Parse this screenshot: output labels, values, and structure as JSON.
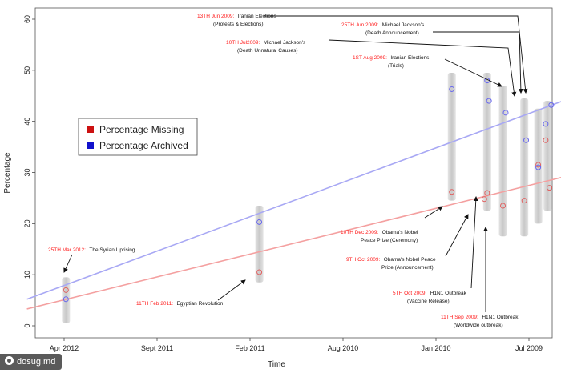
{
  "chart_data": {
    "type": "scatter",
    "xlabel": "Time",
    "ylabel": "Percentage",
    "ylim": [
      0,
      60
    ],
    "yticks": [
      0,
      10,
      20,
      30,
      40,
      50,
      60
    ],
    "x_tick_labels": [
      "Apr 2012",
      "Sept 2011",
      "Feb 2011",
      "Aug 2010",
      "Jan 2010",
      "Jul 2009"
    ],
    "x_tick_pos": [
      0,
      1,
      2,
      3,
      4,
      5
    ],
    "xlim": [
      -0.4,
      5.5
    ],
    "series": [
      {
        "name": "Percentage Missing",
        "color": "#cc1111",
        "marker_color": "#e06060",
        "points": [
          [
            0.02,
            7.0
          ],
          [
            2.1,
            10.5
          ],
          [
            4.17,
            26.2
          ],
          [
            4.55,
            26.0
          ],
          [
            4.52,
            24.8
          ],
          [
            4.72,
            23.5
          ],
          [
            4.95,
            24.5
          ],
          [
            5.1,
            31.5
          ],
          [
            5.18,
            36.3
          ],
          [
            5.22,
            27.0
          ]
        ],
        "trend": [
          [
            -0.4,
            3.3
          ],
          [
            5.5,
            29.7
          ]
        ],
        "trend_color": "#f4a0a0"
      },
      {
        "name": "Percentage Archived",
        "color": "#1111cc",
        "marker_color": "#6666ee",
        "points": [
          [
            0.02,
            5.2
          ],
          [
            2.1,
            20.3
          ],
          [
            4.17,
            46.3
          ],
          [
            4.55,
            48.0
          ],
          [
            4.57,
            44.0
          ],
          [
            4.75,
            41.7
          ],
          [
            4.97,
            36.3
          ],
          [
            5.1,
            31.0
          ],
          [
            5.18,
            39.5
          ],
          [
            5.24,
            43.2
          ]
        ],
        "trend": [
          [
            -0.4,
            5.2
          ],
          [
            5.5,
            44.9
          ]
        ],
        "trend_color": "#a8a8f4"
      }
    ],
    "range_bars": [
      [
        0.02,
        0.5,
        9.5
      ],
      [
        2.1,
        8.5,
        23.5
      ],
      [
        4.17,
        24.5,
        49.5
      ],
      [
        4.55,
        22.5,
        49.5
      ],
      [
        4.72,
        17.5,
        47.0
      ],
      [
        4.95,
        17.5,
        44.5
      ],
      [
        5.1,
        20.0,
        42.5
      ],
      [
        5.2,
        22.5,
        44.0
      ]
    ],
    "annotations": [
      {
        "date": "25TH Mar 2012:",
        "text": "The Syrian Uprising"
      },
      {
        "date": "11TH Feb 2011:",
        "text": "Egyptian Revolution"
      },
      {
        "date": "13TH Jun 2009:",
        "text": "Iranian Elections",
        "line2": "(Protests & Elections)"
      },
      {
        "date": "25TH Jun 2009:",
        "text": "Michael Jackson's",
        "line2": "(Death Announcement)"
      },
      {
        "date": "10TH Jul2009:",
        "text": "Michael Jackson's",
        "line2": "(Death Unnatural Causes)"
      },
      {
        "date": "1ST Aug 2009:",
        "text": "Iranian Elections",
        "line2": "(Trials)"
      },
      {
        "date": "10TH Dec 2009:",
        "text": "Obama's Nobel",
        "line2": "Peace Prize (Ceremony)"
      },
      {
        "date": "9TH Oct 2009:",
        "text": "Obama's Nobel Peace",
        "line2": "Prize (Announcement)"
      },
      {
        "date": "5TH Oct 2009:",
        "text": "H1N1 Outbreak",
        "line2": "(Vaccine Release)"
      },
      {
        "date": "11TH Sep 2009:",
        "text": "H1N1 Outbreak",
        "line2": "(Worldwide outbreak)"
      }
    ],
    "legend_position": "upper-left",
    "grid": false
  },
  "watermark": {
    "text": "dosug.md"
  }
}
